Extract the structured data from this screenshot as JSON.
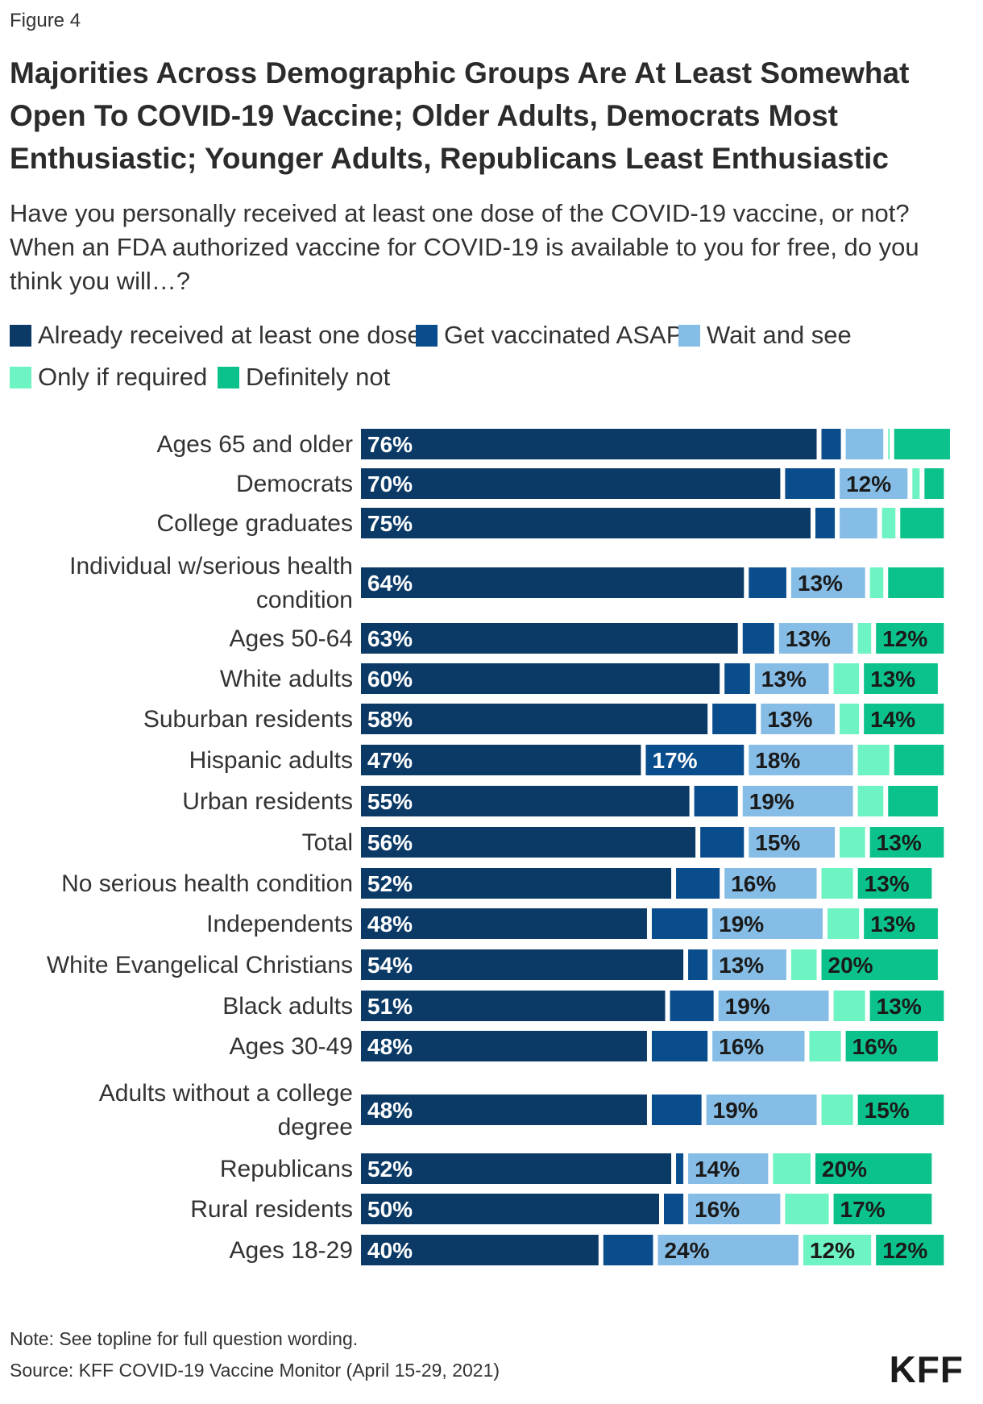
{
  "figure_label": "Figure 4",
  "title": "Majorities Across Demographic Groups Are At Least Somewhat Open To COVID-19 Vaccine; Older Adults, Democrats Most Enthusiastic; Younger Adults, Republicans Least Enthusiastic",
  "subtitle": "Have you personally received at least one dose of the COVID-19 vaccine, or not? When an FDA authorized vaccine for COVID-19 is available to you for free, do you think you will…?",
  "legend": [
    {
      "label": "Already received at least one dose",
      "color": "#0b3a66"
    },
    {
      "label": "Get vaccinated ASAP",
      "color": "#0a4d8c"
    },
    {
      "label": "Wait and see",
      "color": "#86bde6"
    },
    {
      "label": "Only if required",
      "color": "#6ef3c2"
    },
    {
      "label": "Definitely not",
      "color": "#0cc28c"
    }
  ],
  "chart_data": {
    "type": "bar",
    "orientation": "horizontal",
    "stacked": true,
    "xlim": [
      0,
      100
    ],
    "categories": [
      "Ages 65 and older",
      "Democrats",
      "College graduates",
      "Individual w/serious health condition",
      "Ages 50-64",
      "White adults",
      "Suburban residents",
      "Hispanic adults",
      "Urban residents",
      "Total",
      "No serious health condition",
      "Independents",
      "White Evangelical Christians",
      "Black adults",
      "Ages 30-49",
      "Adults without a college degree",
      "Republicans",
      "Rural residents",
      "Ages 18-29"
    ],
    "series": [
      {
        "name": "Already received at least one dose",
        "values": [
          76,
          70,
          75,
          64,
          63,
          60,
          58,
          47,
          55,
          56,
          52,
          48,
          54,
          51,
          48,
          48,
          52,
          50,
          40
        ]
      },
      {
        "name": "Get vaccinated ASAP",
        "values": [
          4,
          9,
          4,
          7,
          6,
          5,
          8,
          17,
          8,
          8,
          8,
          10,
          4,
          8,
          10,
          9,
          2,
          4,
          9
        ]
      },
      {
        "name": "Wait and see",
        "values": [
          7,
          12,
          7,
          13,
          13,
          13,
          13,
          18,
          19,
          15,
          16,
          19,
          13,
          19,
          16,
          19,
          14,
          16,
          24
        ]
      },
      {
        "name": "Only if required",
        "values": [
          1,
          2,
          3,
          3,
          3,
          5,
          4,
          6,
          5,
          5,
          6,
          6,
          5,
          6,
          6,
          6,
          7,
          8,
          12
        ]
      },
      {
        "name": "Definitely not",
        "values": [
          10,
          4,
          8,
          10,
          12,
          13,
          14,
          9,
          9,
          13,
          13,
          13,
          20,
          13,
          16,
          15,
          20,
          17,
          12
        ]
      }
    ],
    "value_labels": [
      [
        "76%",
        "",
        "",
        "",
        ""
      ],
      [
        "70%",
        "",
        "12%",
        "",
        ""
      ],
      [
        "75%",
        "",
        "",
        "",
        ""
      ],
      [
        "64%",
        "",
        "13%",
        "",
        ""
      ],
      [
        "63%",
        "",
        "13%",
        "",
        "12%"
      ],
      [
        "60%",
        "",
        "13%",
        "",
        "13%"
      ],
      [
        "58%",
        "",
        "13%",
        "",
        "14%"
      ],
      [
        "47%",
        "17%",
        "18%",
        "",
        ""
      ],
      [
        "55%",
        "",
        "19%",
        "",
        ""
      ],
      [
        "56%",
        "",
        "15%",
        "",
        "13%"
      ],
      [
        "52%",
        "",
        "16%",
        "",
        "13%"
      ],
      [
        "48%",
        "",
        "19%",
        "",
        "13%"
      ],
      [
        "54%",
        "",
        "13%",
        "",
        "20%"
      ],
      [
        "51%",
        "",
        "19%",
        "",
        "13%"
      ],
      [
        "48%",
        "",
        "16%",
        "",
        "16%"
      ],
      [
        "48%",
        "",
        "19%",
        "",
        "15%"
      ],
      [
        "52%",
        "",
        "14%",
        "",
        "20%"
      ],
      [
        "50%",
        "",
        "16%",
        "",
        "17%"
      ],
      [
        "40%",
        "",
        "24%",
        "12%",
        "12%"
      ]
    ]
  },
  "note": "Note: See topline for full question wording.",
  "source": "Source: KFF COVID-19 Vaccine Monitor (April 15-29, 2021)",
  "logo": "KFF"
}
